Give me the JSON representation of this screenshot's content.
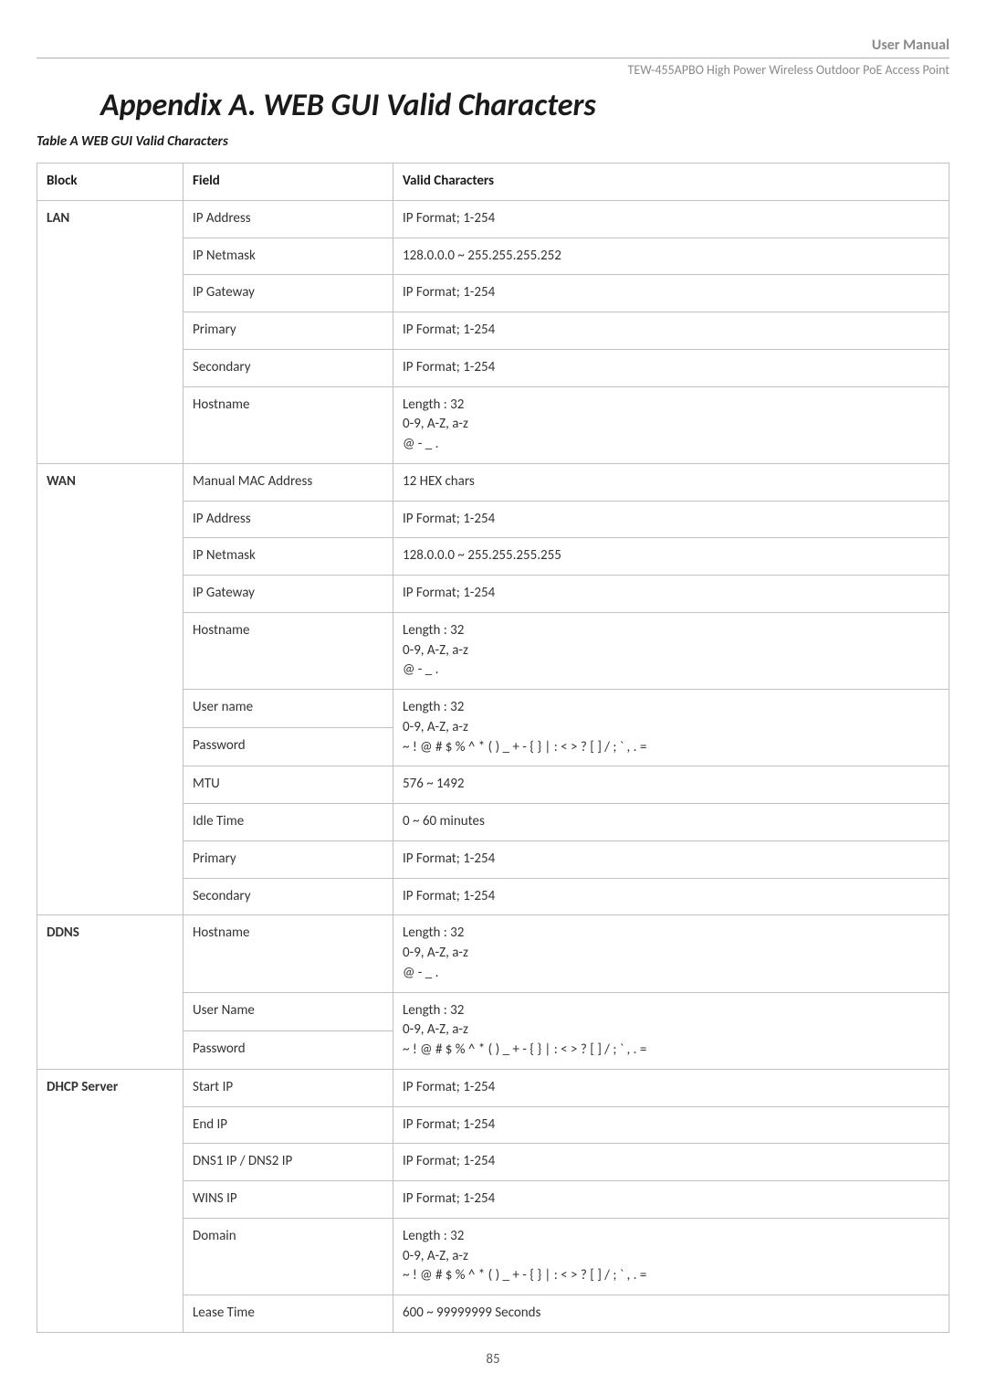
{
  "header": {
    "title": "User Manual",
    "subtitle": "TEW-455APBO High Power Wireless Outdoor PoE Access Point"
  },
  "heading": "Appendix A.   WEB GUI Valid Characters",
  "caption": "Table A  WEB GUI Valid Characters",
  "columns": {
    "c0": "Block",
    "c1": "Field",
    "c2": "Valid  Characters"
  },
  "blocks": {
    "lan": "LAN",
    "wan": "WAN",
    "ddns": "DDNS",
    "dhcp": "DHCP Server"
  },
  "lan": {
    "r0f": "IP Address",
    "r0v": "IP Format; 1-254",
    "r1f": "IP Netmask",
    "r1v": "128.0.0.0 ~ 255.255.255.252",
    "r2f": "IP Gateway",
    "r2v": "IP Format; 1-254",
    "r3f": "Primary",
    "r3v": "IP Format; 1-254",
    "r4f": "Secondary",
    "r4v": "IP Format; 1-254",
    "r5f": "Hostname",
    "r5v": "Length : 32\n0-9, A-Z, a-z\n@ - _ ."
  },
  "wan": {
    "r0f": "Manual MAC Address",
    "r0v": "12 HEX chars",
    "r1f": "IP Address",
    "r1v": "IP Format; 1-254",
    "r2f": "IP Netmask",
    "r2v": "128.0.0.0 ~ 255.255.255.255",
    "r3f": "IP Gateway",
    "r3v": "IP Format; 1-254",
    "r4f": "Hostname",
    "r4v": "Length : 32\n0-9, A-Z, a-z\n@ - _ .",
    "r5f": "User name",
    "r5v": "Length : 32\n0-9, A-Z, a-z",
    "r6f": "Password",
    "r6v": "~ ! @ # $ % ^ * ( ) _ + - { } | : < > ? [ ] / ; ` , . =",
    "r7f": "MTU",
    "r7v": "576 ~ 1492",
    "r8f": "Idle Time",
    "r8v": "0 ~ 60 minutes",
    "r9f": "Primary",
    "r9v": "IP Format; 1-254",
    "r10f": "Secondary",
    "r10v": "IP Format; 1-254"
  },
  "ddns": {
    "r0f": "Hostname",
    "r0v": "Length : 32\n0-9, A-Z, a-z\n@ - _ .",
    "r1f": "User Name",
    "r1v": "Length : 32\n0-9, A-Z, a-z",
    "r2f": "Password",
    "r2v": "~ ! @ # $ % ^ * ( ) _ + - { } | : < > ? [ ] / ; ` , . ="
  },
  "dhcp": {
    "r0f": "Start IP",
    "r0v": "IP Format; 1-254",
    "r1f": "End IP",
    "r1v": "IP Format; 1-254",
    "r2f": "DNS1 IP / DNS2 IP",
    "r2v": "IP Format; 1-254",
    "r3f": "WINS IP",
    "r3v": "IP Format; 1-254",
    "r4f": "Domain",
    "r4v": "Length : 32\n0-9, A-Z, a-z\n~ ! @ # $ % ^ * ( ) _ + - { } | : < > ? [ ] / ; ` , . =",
    "r5f": "Lease Time",
    "r5v": "600 ~ 99999999 Seconds"
  },
  "pageNumber": "85"
}
